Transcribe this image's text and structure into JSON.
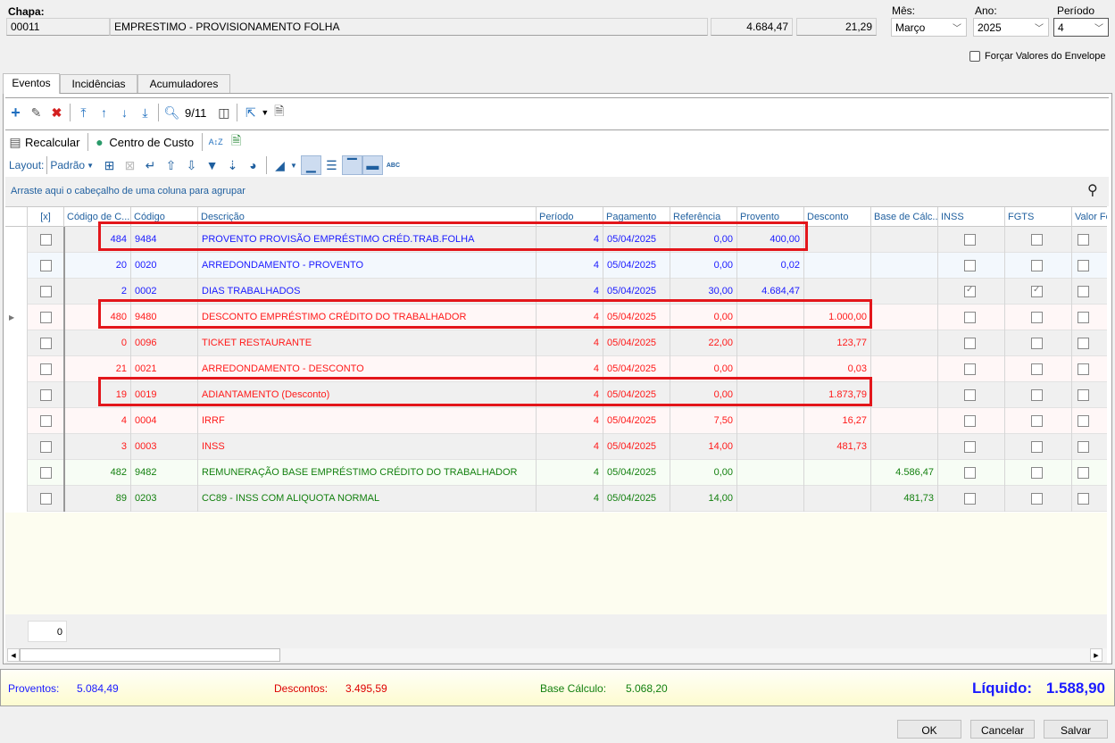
{
  "header": {
    "chapa_label": "Chapa:",
    "chapa": "00011",
    "nome": "EMPRESTIMO - PROVISIONAMENTO FOLHA",
    "valor1": "4.684,47",
    "valor2": "21,29",
    "mes_label": "Mês:",
    "mes": "Março",
    "ano_label": "Ano:",
    "ano": "2025",
    "periodo_label": "Período",
    "periodo": "4",
    "forcar_label": "Forçar Valores do Envelope",
    "forcar_checked": false
  },
  "tabs": [
    {
      "label": "Eventos",
      "active": true
    },
    {
      "label": "Incidências"
    },
    {
      "label": "Acumuladores"
    }
  ],
  "toolbar": {
    "record_counter": "9/11",
    "recalcular": "Recalcular",
    "centro_custo": "Centro de Custo",
    "layout_label": "Layout:",
    "layout_value": "Padrão"
  },
  "grid": {
    "group_hint": "Arraste aqui o cabeçalho de uma coluna para agrupar",
    "columns": [
      "[x]",
      "Código de C...",
      "Código",
      "Descrição",
      "Período",
      "Pagamento",
      "Referência",
      "Provento",
      "Desconto",
      "Base de Cálc...",
      "INSS",
      "FGTS",
      "Valor Fé"
    ],
    "colors": {
      "provento": "#1a1aff",
      "desconto": "#ff1a1a",
      "base": "#13800f"
    },
    "rows": [
      {
        "type": "provento",
        "cod_c": "484",
        "codigo": "9484",
        "descricao": "PROVENTO PROVISÃO EMPRÉSTIMO CRÉD.TRAB.FOLHA",
        "periodo": "4",
        "pagamento": "05/04/2025",
        "referencia": "0,00",
        "provento": "400,00",
        "desconto": "",
        "base": "",
        "inss": false,
        "fgts": false,
        "highlighted": true
      },
      {
        "type": "provento",
        "cod_c": "20",
        "codigo": "0020",
        "descricao": "ARREDONDAMENTO - PROVENTO",
        "periodo": "4",
        "pagamento": "05/04/2025",
        "referencia": "0,00",
        "provento": "0,02",
        "desconto": "",
        "base": "",
        "inss": false,
        "fgts": false
      },
      {
        "type": "provento",
        "cod_c": "2",
        "codigo": "0002",
        "descricao": "DIAS TRABALHADOS",
        "periodo": "4",
        "pagamento": "05/04/2025",
        "referencia": "30,00",
        "provento": "4.684,47",
        "desconto": "",
        "base": "",
        "inss": true,
        "fgts": true
      },
      {
        "type": "desconto",
        "cod_c": "480",
        "codigo": "9480",
        "descricao": "DESCONTO EMPRÉSTIMO CRÉDITO DO TRABALHADOR",
        "periodo": "4",
        "pagamento": "05/04/2025",
        "referencia": "0,00",
        "provento": "",
        "desconto": "1.000,00",
        "base": "",
        "inss": false,
        "fgts": false,
        "highlighted": true,
        "current": true
      },
      {
        "type": "desconto",
        "cod_c": "0",
        "codigo": "0096",
        "descricao": "TICKET RESTAURANTE",
        "periodo": "4",
        "pagamento": "05/04/2025",
        "referencia": "22,00",
        "provento": "",
        "desconto": "123,77",
        "base": "",
        "inss": false,
        "fgts": false
      },
      {
        "type": "desconto",
        "cod_c": "21",
        "codigo": "0021",
        "descricao": "ARREDONDAMENTO - DESCONTO",
        "periodo": "4",
        "pagamento": "05/04/2025",
        "referencia": "0,00",
        "provento": "",
        "desconto": "0,03",
        "base": "",
        "inss": false,
        "fgts": false
      },
      {
        "type": "desconto",
        "cod_c": "19",
        "codigo": "0019",
        "descricao": "ADIANTAMENTO (Desconto)",
        "periodo": "4",
        "pagamento": "05/04/2025",
        "referencia": "0,00",
        "provento": "",
        "desconto": "1.873,79",
        "base": "",
        "inss": false,
        "fgts": false,
        "highlighted": true
      },
      {
        "type": "desconto",
        "cod_c": "4",
        "codigo": "0004",
        "descricao": "IRRF",
        "periodo": "4",
        "pagamento": "05/04/2025",
        "referencia": "7,50",
        "provento": "",
        "desconto": "16,27",
        "base": "",
        "inss": false,
        "fgts": false
      },
      {
        "type": "desconto",
        "cod_c": "3",
        "codigo": "0003",
        "descricao": "INSS",
        "periodo": "4",
        "pagamento": "05/04/2025",
        "referencia": "14,00",
        "provento": "",
        "desconto": "481,73",
        "base": "",
        "inss": false,
        "fgts": false
      },
      {
        "type": "base",
        "cod_c": "482",
        "codigo": "9482",
        "descricao": "REMUNERAÇÃO BASE EMPRÉSTIMO CRÉDITO DO TRABALHADOR",
        "periodo": "4",
        "pagamento": "05/04/2025",
        "referencia": "0,00",
        "provento": "",
        "desconto": "",
        "base": "4.586,47",
        "inss": false,
        "fgts": false
      },
      {
        "type": "base",
        "cod_c": "89",
        "codigo": "0203",
        "descricao": "CC89 - INSS COM ALIQUOTA NORMAL",
        "periodo": "4",
        "pagamento": "05/04/2025",
        "referencia": "14,00",
        "provento": "",
        "desconto": "",
        "base": "481,73",
        "inss": false,
        "fgts": false
      }
    ],
    "footer_count": "0"
  },
  "totals": {
    "proventos_label": "Proventos:",
    "proventos": "5.084,49",
    "descontos_label": "Descontos:",
    "descontos": "3.495,59",
    "base_label": "Base Cálculo:",
    "base": "5.068,20",
    "liquido_label": "Líquido:",
    "liquido": "1.588,90"
  },
  "buttons": {
    "ok": "OK",
    "cancelar": "Cancelar",
    "salvar": "Salvar"
  }
}
